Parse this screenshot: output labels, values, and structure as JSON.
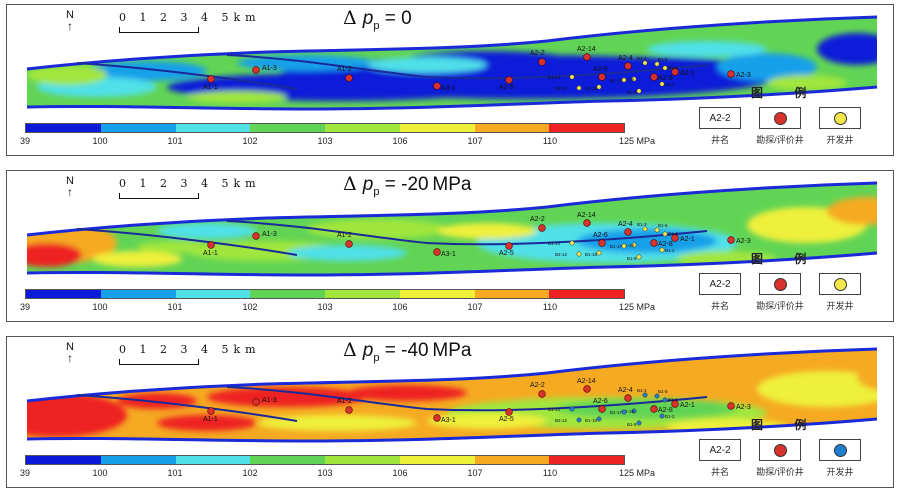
{
  "panels": [
    {
      "title_prefix": "Δ ",
      "title_var": "p",
      "title_sub": "p",
      "title_value": " = 0",
      "regime": "low",
      "dev_color": "#f5e64a"
    },
    {
      "title_prefix": "Δ ",
      "title_var": "p",
      "title_sub": "p",
      "title_value": " = -20 MPa",
      "regime": "mid",
      "dev_color": "#f5e64a"
    },
    {
      "title_prefix": "Δ ",
      "title_var": "p",
      "title_sub": "p",
      "title_value": " = -40 MPa",
      "regime": "high",
      "dev_color": "#1e7fd0"
    }
  ],
  "north_label": "N",
  "scale_label": "0 1 2 3 4 5km",
  "colorbar": {
    "ticks": [
      "39",
      "100",
      "101",
      "102",
      "103",
      "106",
      "107",
      "110",
      "125 MPa"
    ],
    "colors": [
      "#0a1ad8",
      "#16a0ea",
      "#4fe0e8",
      "#62d455",
      "#a0e63c",
      "#eef03a",
      "#f5aa22",
      "#ee2222"
    ]
  },
  "legend": {
    "title": "图 例",
    "well_name_sample": "A2-2",
    "well_name_caption": "井名",
    "appraisal_caption": "勘探/评价井",
    "dev_caption": "开发井",
    "appraisal_color": "#d8322c"
  },
  "wells": [
    {
      "name": "A1-1"
    },
    {
      "name": "A1-3"
    },
    {
      "name": "A1-2"
    },
    {
      "name": "A3-1"
    },
    {
      "name": "A2-2"
    },
    {
      "name": "A2-5"
    },
    {
      "name": "A2-14"
    },
    {
      "name": "A2-4"
    },
    {
      "name": "A2-6"
    },
    {
      "name": "A2-8"
    },
    {
      "name": "A2-1"
    },
    {
      "name": "A2-3"
    }
  ],
  "dev_wells": [
    {
      "name": "B1-14"
    },
    {
      "name": "B1-3"
    },
    {
      "name": "B1-19"
    },
    {
      "name": "B1-5"
    },
    {
      "name": "B1-4"
    },
    {
      "name": "B1-17"
    },
    {
      "name": "B1-2"
    },
    {
      "name": "B2-12"
    },
    {
      "name": "B1-16"
    },
    {
      "name": "B1-8"
    }
  ]
}
